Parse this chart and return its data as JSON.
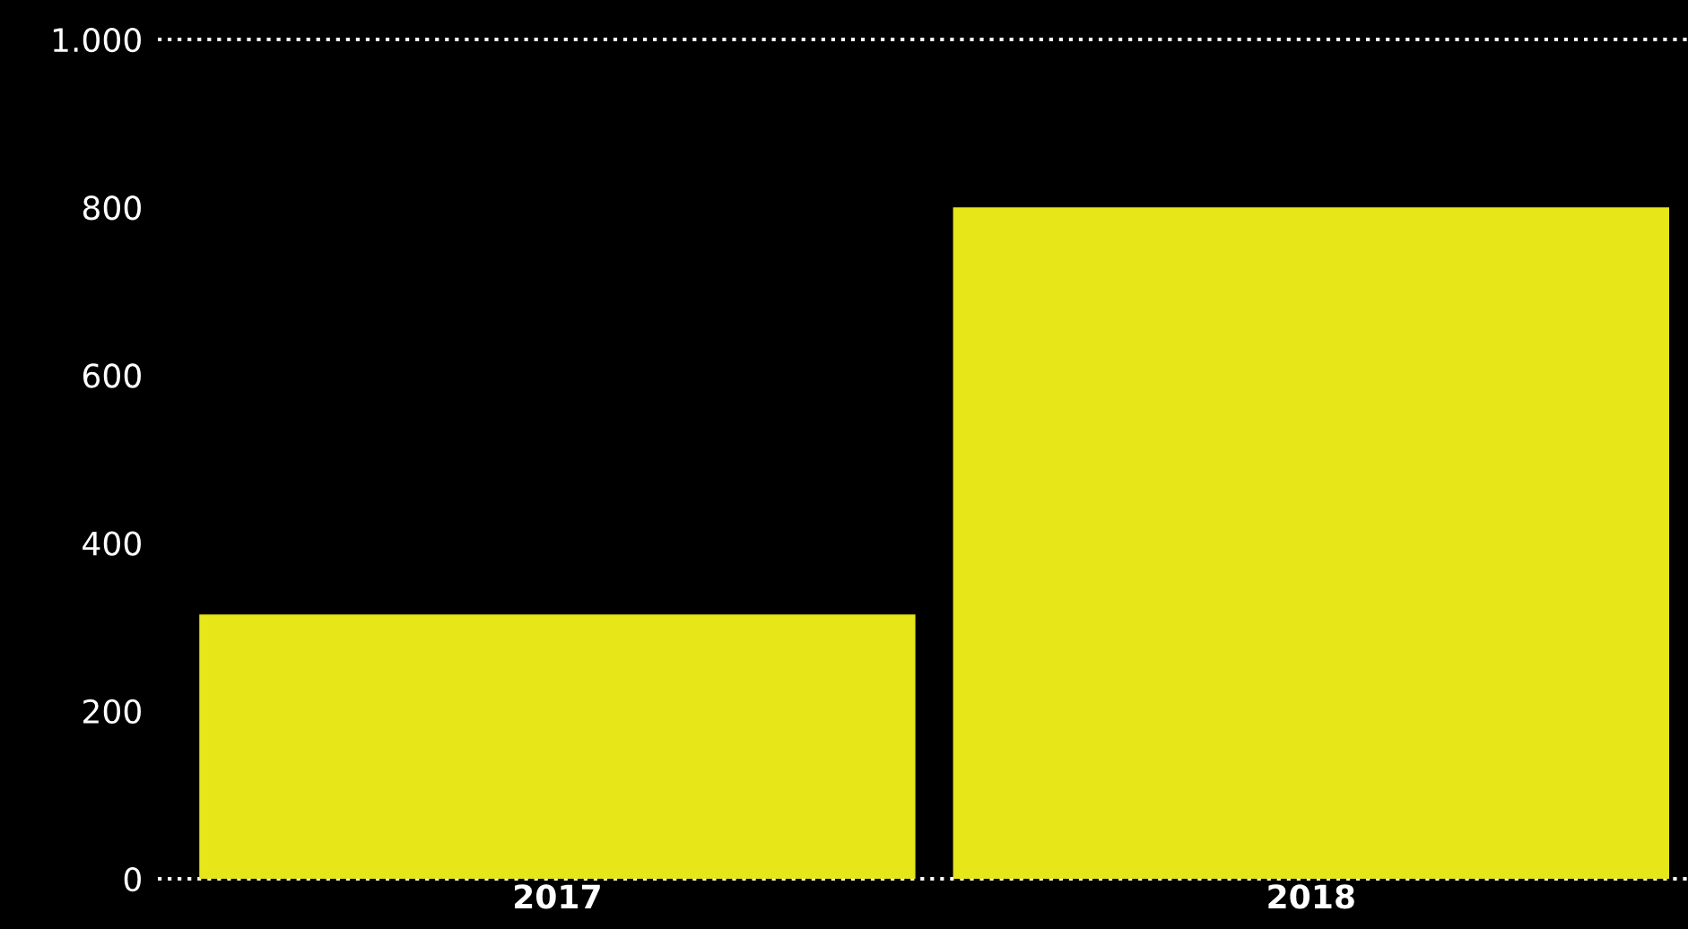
{
  "chart_data": {
    "type": "bar",
    "categories": [
      "2017",
      "2018"
    ],
    "values": [
      315,
      800
    ],
    "color": "#e6e619",
    "ylim": [
      0,
      1000
    ],
    "yticks": [
      0,
      200,
      400,
      600,
      800,
      {
        "value": 1000,
        "label": "1.000"
      }
    ],
    "grid": false,
    "ref_lines": [
      {
        "axis": "y",
        "value": 0,
        "color": "#ffffff",
        "line_style": "dotted"
      },
      {
        "axis": "y",
        "value": 1000,
        "color": "#ffffff",
        "line_style": "dotted"
      }
    ]
  }
}
